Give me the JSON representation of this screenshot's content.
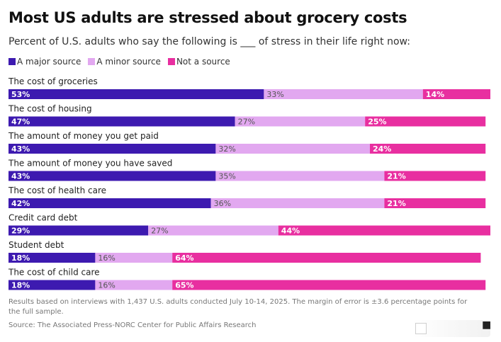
{
  "title": "Most US adults are stressed about grocery costs",
  "subtitle": "Percent of U.S. adults who say the following is ___ of stress in their life right now:",
  "legend": [
    {
      "label": "A major source",
      "color": "#3d1ab0"
    },
    {
      "label": "A minor source",
      "color": "#e2a8f0"
    },
    {
      "label": "Not a source",
      "color": "#e82fa0"
    }
  ],
  "chart_data": {
    "type": "bar",
    "orientation": "horizontal",
    "stacked": true,
    "categories": [
      "The cost of groceries",
      "The cost of housing",
      "The amount of money you get paid",
      "The amount of money you have saved",
      "The cost of health care",
      "Credit card debt",
      "Student debt",
      "The cost of child care"
    ],
    "series": [
      {
        "name": "A major source",
        "color": "#3d1ab0",
        "values": [
          53,
          47,
          43,
          43,
          42,
          29,
          18,
          18
        ]
      },
      {
        "name": "A minor source",
        "color": "#e2a8f0",
        "values": [
          33,
          27,
          32,
          35,
          36,
          27,
          16,
          16
        ]
      },
      {
        "name": "Not a source",
        "color": "#e82fa0",
        "values": [
          14,
          25,
          24,
          21,
          21,
          44,
          64,
          65
        ]
      }
    ],
    "value_suffix": "%",
    "xlim": [
      0,
      100
    ],
    "grid": false,
    "legend_position": "top-left"
  },
  "footnote": "Results based on interviews with 1,437 U.S. adults conducted July 10-14, 2025. The margin of error is ±3.6 percentage points for the full sample.",
  "source": "Source: The Associated Press-NORC Center for Public Affairs Research",
  "icons": {
    "corner": "share-icon"
  }
}
